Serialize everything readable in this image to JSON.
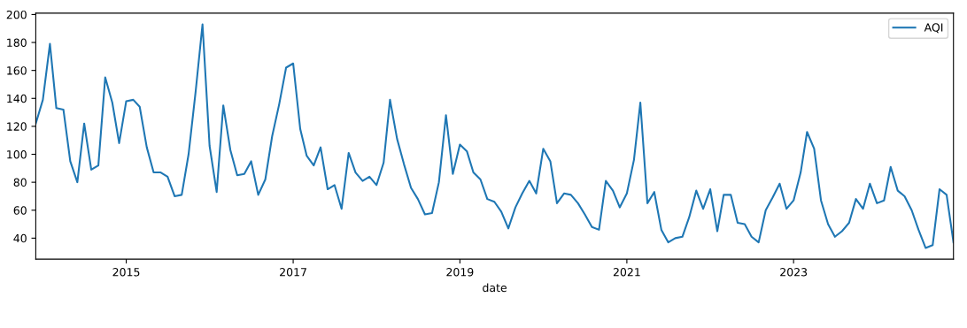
{
  "chart_data": {
    "type": "line",
    "xlabel": "date",
    "x": [
      "2013-12",
      "2014-01",
      "2014-02",
      "2014-03",
      "2014-04",
      "2014-05",
      "2014-06",
      "2014-07",
      "2014-08",
      "2014-09",
      "2014-10",
      "2014-11",
      "2014-12",
      "2015-01",
      "2015-02",
      "2015-03",
      "2015-04",
      "2015-05",
      "2015-06",
      "2015-07",
      "2015-08",
      "2015-09",
      "2015-10",
      "2015-11",
      "2015-12",
      "2016-01",
      "2016-02",
      "2016-03",
      "2016-04",
      "2016-05",
      "2016-06",
      "2016-07",
      "2016-08",
      "2016-09",
      "2016-10",
      "2016-11",
      "2016-12",
      "2017-01",
      "2017-02",
      "2017-03",
      "2017-04",
      "2017-05",
      "2017-06",
      "2017-07",
      "2017-08",
      "2017-09",
      "2017-10",
      "2017-11",
      "2017-12",
      "2018-01",
      "2018-02",
      "2018-03",
      "2018-04",
      "2018-05",
      "2018-06",
      "2018-07",
      "2018-08",
      "2018-09",
      "2018-10",
      "2018-11",
      "2018-12",
      "2019-01",
      "2019-02",
      "2019-03",
      "2019-04",
      "2019-05",
      "2019-06",
      "2019-07",
      "2019-08",
      "2019-09",
      "2019-10",
      "2019-11",
      "2019-12",
      "2020-01",
      "2020-02",
      "2020-03",
      "2020-04",
      "2020-05",
      "2020-06",
      "2020-07",
      "2020-08",
      "2020-09",
      "2020-10",
      "2020-11",
      "2020-12",
      "2021-01",
      "2021-02",
      "2021-03",
      "2021-04",
      "2021-05",
      "2021-06",
      "2021-07",
      "2021-08",
      "2021-09",
      "2021-10",
      "2021-11",
      "2021-12",
      "2022-01",
      "2022-02",
      "2022-03",
      "2022-04",
      "2022-05",
      "2022-06",
      "2022-07",
      "2022-08",
      "2022-09",
      "2022-10",
      "2022-11",
      "2022-12",
      "2023-01",
      "2023-02",
      "2023-03",
      "2023-04",
      "2023-05",
      "2023-06",
      "2023-07",
      "2023-08",
      "2023-09",
      "2023-10",
      "2023-11",
      "2023-12",
      "2024-01",
      "2024-02",
      "2024-03",
      "2024-04",
      "2024-05",
      "2024-06",
      "2024-07",
      "2024-08",
      "2024-09",
      "2024-10",
      "2024-11",
      "2024-12"
    ],
    "series": [
      {
        "name": "AQI",
        "color": "#1f77b4",
        "values": [
          122,
          139,
          179,
          133,
          132,
          95,
          80,
          122,
          89,
          92,
          155,
          137,
          108,
          138,
          139,
          134,
          105,
          87,
          87,
          84,
          70,
          71,
          100,
          145,
          193,
          106,
          73,
          135,
          103,
          85,
          86,
          95,
          71,
          82,
          113,
          136,
          162,
          165,
          118,
          99,
          92,
          105,
          75,
          78,
          61,
          101,
          87,
          81,
          84,
          78,
          94,
          139,
          111,
          93,
          76,
          68,
          57,
          58,
          80,
          128,
          86,
          107,
          102,
          87,
          82,
          68,
          66,
          59,
          47,
          62,
          72,
          81,
          72,
          104,
          95,
          65,
          72,
          71,
          65,
          57,
          48,
          46,
          81,
          74,
          62,
          72,
          96,
          137,
          65,
          73,
          46,
          37,
          40,
          41,
          55,
          74,
          61,
          75,
          45,
          71,
          71,
          51,
          50,
          41,
          37,
          60,
          69,
          79,
          61,
          67,
          87,
          116,
          104,
          67,
          50,
          41,
          45,
          51,
          68,
          61,
          79,
          65,
          67,
          91,
          74,
          70,
          60,
          46,
          33,
          35,
          75,
          71,
          37
        ]
      }
    ],
    "xlim": [
      "2013-12",
      "2024-12"
    ],
    "xticks": [
      {
        "value": "2015-01",
        "label": "2015"
      },
      {
        "value": "2017-01",
        "label": "2017"
      },
      {
        "value": "2019-01",
        "label": "2019"
      },
      {
        "value": "2021-01",
        "label": "2021"
      },
      {
        "value": "2023-01",
        "label": "2023"
      }
    ],
    "ylim": [
      25,
      201
    ],
    "yticks": [
      40,
      60,
      80,
      100,
      120,
      140,
      160,
      180,
      200
    ],
    "legend": "top right",
    "grid": false,
    "marker": "none",
    "line_style": "solid"
  }
}
